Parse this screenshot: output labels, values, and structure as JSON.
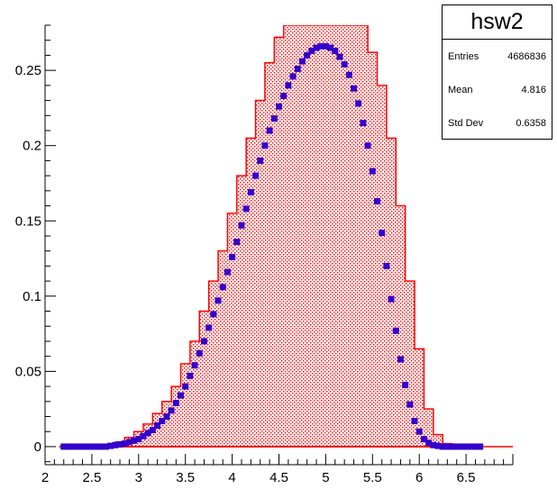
{
  "chart_data": {
    "type": "histogram",
    "xlim": [
      2,
      7
    ],
    "ylim": [
      -0.012,
      0.28
    ],
    "x_ticks": [
      "2",
      "2.5",
      "3",
      "3.5",
      "4",
      "4.5",
      "5",
      "5.5",
      "6",
      "6.5"
    ],
    "y_ticks": [
      "0",
      "0.05",
      "0.1",
      "0.15",
      "0.2",
      "0.25"
    ],
    "colors": {
      "histogram": "#ff0000",
      "markers": "#3300cc"
    },
    "series": [
      {
        "kind": "filled-step-histogram",
        "color": "#ff0000",
        "fill": "red-dot-hatch",
        "bins": [
          [
            2.2,
            0.0
          ],
          [
            2.3,
            0.0
          ],
          [
            2.4,
            0.0
          ],
          [
            2.5,
            0.0
          ],
          [
            2.6,
            0.0
          ],
          [
            2.7,
            0.001
          ],
          [
            2.8,
            0.003
          ],
          [
            2.9,
            0.006
          ],
          [
            3.0,
            0.01
          ],
          [
            3.1,
            0.015
          ],
          [
            3.2,
            0.022
          ],
          [
            3.3,
            0.03
          ],
          [
            3.4,
            0.04
          ],
          [
            3.5,
            0.055
          ],
          [
            3.6,
            0.07
          ],
          [
            3.7,
            0.09
          ],
          [
            3.8,
            0.11
          ],
          [
            3.9,
            0.13
          ],
          [
            4.0,
            0.155
          ],
          [
            4.1,
            0.18
          ],
          [
            4.2,
            0.205
          ],
          [
            4.3,
            0.23
          ],
          [
            4.4,
            0.255
          ],
          [
            4.5,
            0.272
          ],
          [
            4.6,
            0.28
          ],
          [
            4.7,
            0.28
          ],
          [
            4.8,
            0.28
          ],
          [
            4.9,
            0.28
          ],
          [
            5.0,
            0.28
          ],
          [
            5.1,
            0.28
          ],
          [
            5.2,
            0.28
          ],
          [
            5.3,
            0.28
          ],
          [
            5.4,
            0.28
          ],
          [
            5.5,
            0.262
          ],
          [
            5.6,
            0.24
          ],
          [
            5.7,
            0.205
          ],
          [
            5.8,
            0.16
          ],
          [
            5.9,
            0.11
          ],
          [
            6.0,
            0.065
          ],
          [
            6.1,
            0.025
          ],
          [
            6.2,
            0.008
          ],
          [
            6.3,
            0.002
          ],
          [
            6.4,
            0.0
          ],
          [
            6.5,
            0.0
          ],
          [
            6.6,
            0.0
          ]
        ]
      },
      {
        "kind": "markers",
        "color": "#3300cc",
        "points": [
          [
            2.2,
            0.0
          ],
          [
            2.25,
            0.0
          ],
          [
            2.3,
            0.0
          ],
          [
            2.35,
            0.0
          ],
          [
            2.4,
            0.0
          ],
          [
            2.45,
            0.0
          ],
          [
            2.5,
            0.0
          ],
          [
            2.55,
            0.0
          ],
          [
            2.6,
            0.0
          ],
          [
            2.65,
            0.0
          ],
          [
            2.7,
            0.0005
          ],
          [
            2.75,
            0.001
          ],
          [
            2.8,
            0.0015
          ],
          [
            2.85,
            0.002
          ],
          [
            2.9,
            0.003
          ],
          [
            2.95,
            0.004
          ],
          [
            3.0,
            0.005
          ],
          [
            3.05,
            0.007
          ],
          [
            3.1,
            0.009
          ],
          [
            3.15,
            0.011
          ],
          [
            3.2,
            0.014
          ],
          [
            3.25,
            0.017
          ],
          [
            3.3,
            0.02
          ],
          [
            3.35,
            0.024
          ],
          [
            3.4,
            0.029
          ],
          [
            3.45,
            0.034
          ],
          [
            3.5,
            0.04
          ],
          [
            3.55,
            0.047
          ],
          [
            3.6,
            0.054
          ],
          [
            3.65,
            0.062
          ],
          [
            3.7,
            0.07
          ],
          [
            3.75,
            0.079
          ],
          [
            3.8,
            0.088
          ],
          [
            3.85,
            0.097
          ],
          [
            3.9,
            0.106
          ],
          [
            3.95,
            0.116
          ],
          [
            4.0,
            0.126
          ],
          [
            4.05,
            0.136
          ],
          [
            4.1,
            0.147
          ],
          [
            4.15,
            0.158
          ],
          [
            4.2,
            0.169
          ],
          [
            4.25,
            0.18
          ],
          [
            4.3,
            0.19
          ],
          [
            4.35,
            0.2
          ],
          [
            4.4,
            0.21
          ],
          [
            4.45,
            0.218
          ],
          [
            4.5,
            0.226
          ],
          [
            4.55,
            0.233
          ],
          [
            4.6,
            0.24
          ],
          [
            4.65,
            0.246
          ],
          [
            4.7,
            0.251
          ],
          [
            4.75,
            0.256
          ],
          [
            4.8,
            0.26
          ],
          [
            4.85,
            0.263
          ],
          [
            4.9,
            0.265
          ],
          [
            4.95,
            0.266
          ],
          [
            5.0,
            0.266
          ],
          [
            5.05,
            0.265
          ],
          [
            5.1,
            0.263
          ],
          [
            5.15,
            0.259
          ],
          [
            5.2,
            0.254
          ],
          [
            5.25,
            0.247
          ],
          [
            5.3,
            0.238
          ],
          [
            5.35,
            0.228
          ],
          [
            5.4,
            0.215
          ],
          [
            5.45,
            0.2
          ],
          [
            5.5,
            0.183
          ],
          [
            5.55,
            0.163
          ],
          [
            5.6,
            0.142
          ],
          [
            5.65,
            0.12
          ],
          [
            5.7,
            0.098
          ],
          [
            5.75,
            0.077
          ],
          [
            5.8,
            0.058
          ],
          [
            5.85,
            0.041
          ],
          [
            5.9,
            0.028
          ],
          [
            5.95,
            0.017
          ],
          [
            6.0,
            0.01
          ],
          [
            6.05,
            0.005
          ],
          [
            6.1,
            0.0025
          ],
          [
            6.15,
            0.001
          ],
          [
            6.2,
            0.0005
          ],
          [
            6.25,
            0.0
          ],
          [
            6.3,
            0.0
          ],
          [
            6.35,
            0.0
          ],
          [
            6.4,
            0.0
          ],
          [
            6.45,
            0.0
          ],
          [
            6.5,
            0.0
          ],
          [
            6.55,
            0.0
          ],
          [
            6.6,
            0.0
          ],
          [
            6.65,
            0.0
          ]
        ]
      }
    ]
  },
  "stats_box": {
    "title": "hsw2",
    "rows": [
      {
        "label": "Entries",
        "value": "4686836"
      },
      {
        "label": "Mean",
        "value": "4.816"
      },
      {
        "label": "Std Dev",
        "value": "0.6358"
      }
    ]
  }
}
